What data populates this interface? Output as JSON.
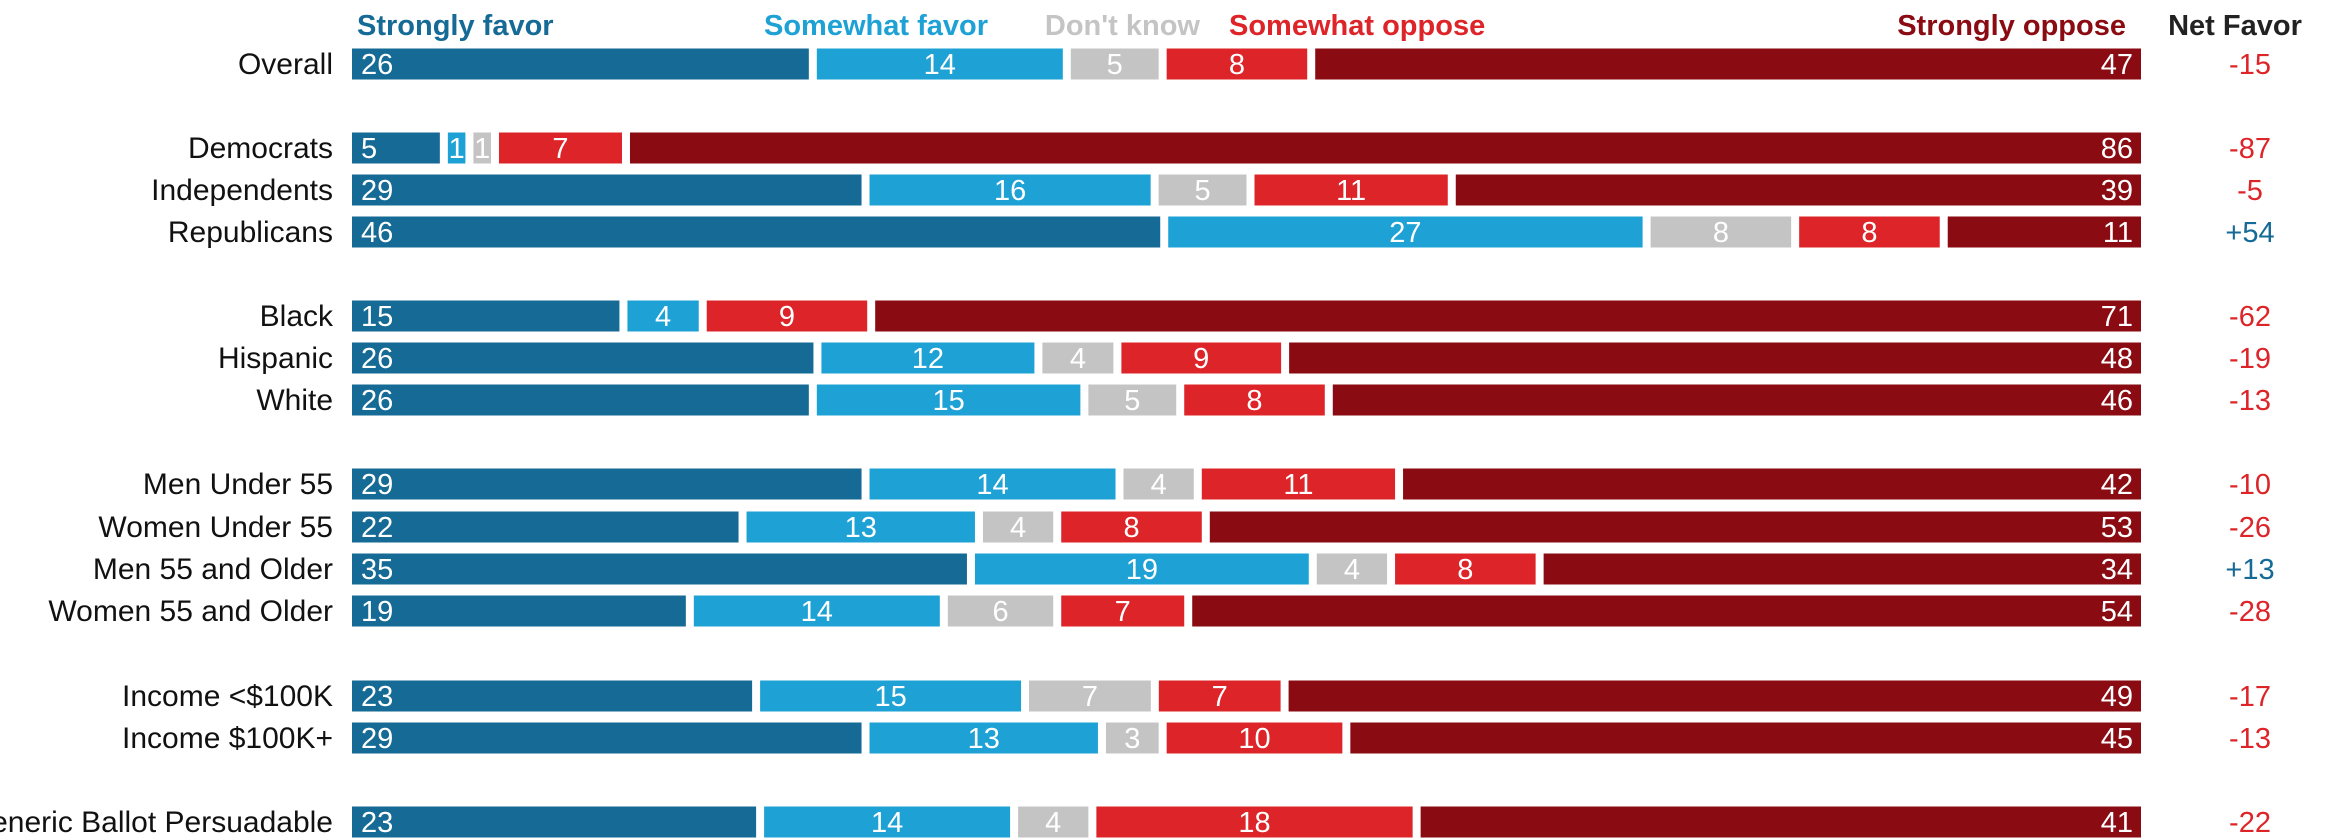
{
  "chart_data": {
    "type": "bar",
    "orientation": "horizontal",
    "stacked": true,
    "title": "",
    "xlabel": "",
    "ylabel": "",
    "xlim": [
      0,
      100
    ],
    "grid": false,
    "legend_position": "top",
    "net_header": "Net Favor",
    "series": [
      {
        "name": "Strongly favor",
        "color": "#156A96"
      },
      {
        "name": "Somewhat favor",
        "color": "#1EA1D4"
      },
      {
        "name": "Don't know",
        "color": "#C4C4C4"
      },
      {
        "name": "Somewhat oppose",
        "color": "#DD2429"
      },
      {
        "name": "Strongly oppose",
        "color": "#8A0B12"
      }
    ],
    "net_colors": {
      "negative": "#DD2429",
      "positive": "#156A96"
    },
    "rows": [
      {
        "label": "Overall",
        "values": [
          26,
          14,
          5,
          8,
          47
        ],
        "net": "-15"
      },
      {
        "label": "Democrats",
        "values": [
          5,
          1,
          1,
          7,
          86
        ],
        "net": "-87"
      },
      {
        "label": "Independents",
        "values": [
          29,
          16,
          5,
          11,
          39
        ],
        "net": "-5"
      },
      {
        "label": "Republicans",
        "values": [
          46,
          27,
          8,
          8,
          11
        ],
        "net": "+54"
      },
      {
        "label": "Black",
        "values": [
          15,
          4,
          0,
          9,
          71
        ],
        "net": "-62"
      },
      {
        "label": "Hispanic",
        "values": [
          26,
          12,
          4,
          9,
          48
        ],
        "net": "-19"
      },
      {
        "label": "White",
        "values": [
          26,
          15,
          5,
          8,
          46
        ],
        "net": "-13"
      },
      {
        "label": "Men Under 55",
        "values": [
          29,
          14,
          4,
          11,
          42
        ],
        "net": "-10"
      },
      {
        "label": "Women Under 55",
        "values": [
          22,
          13,
          4,
          8,
          53
        ],
        "net": "-26"
      },
      {
        "label": "Men 55 and Older",
        "values": [
          35,
          19,
          4,
          8,
          34
        ],
        "net": "+13"
      },
      {
        "label": "Women 55 and Older",
        "values": [
          19,
          14,
          6,
          7,
          54
        ],
        "net": "-28"
      },
      {
        "label": "Income <$100K",
        "values": [
          23,
          15,
          7,
          7,
          49
        ],
        "net": "-17"
      },
      {
        "label": "Income $100K+",
        "values": [
          29,
          13,
          3,
          10,
          45
        ],
        "net": "-13"
      },
      {
        "label": "Generic Ballot Persuadable",
        "values": [
          23,
          14,
          4,
          18,
          41
        ],
        "net": "-22"
      }
    ]
  }
}
